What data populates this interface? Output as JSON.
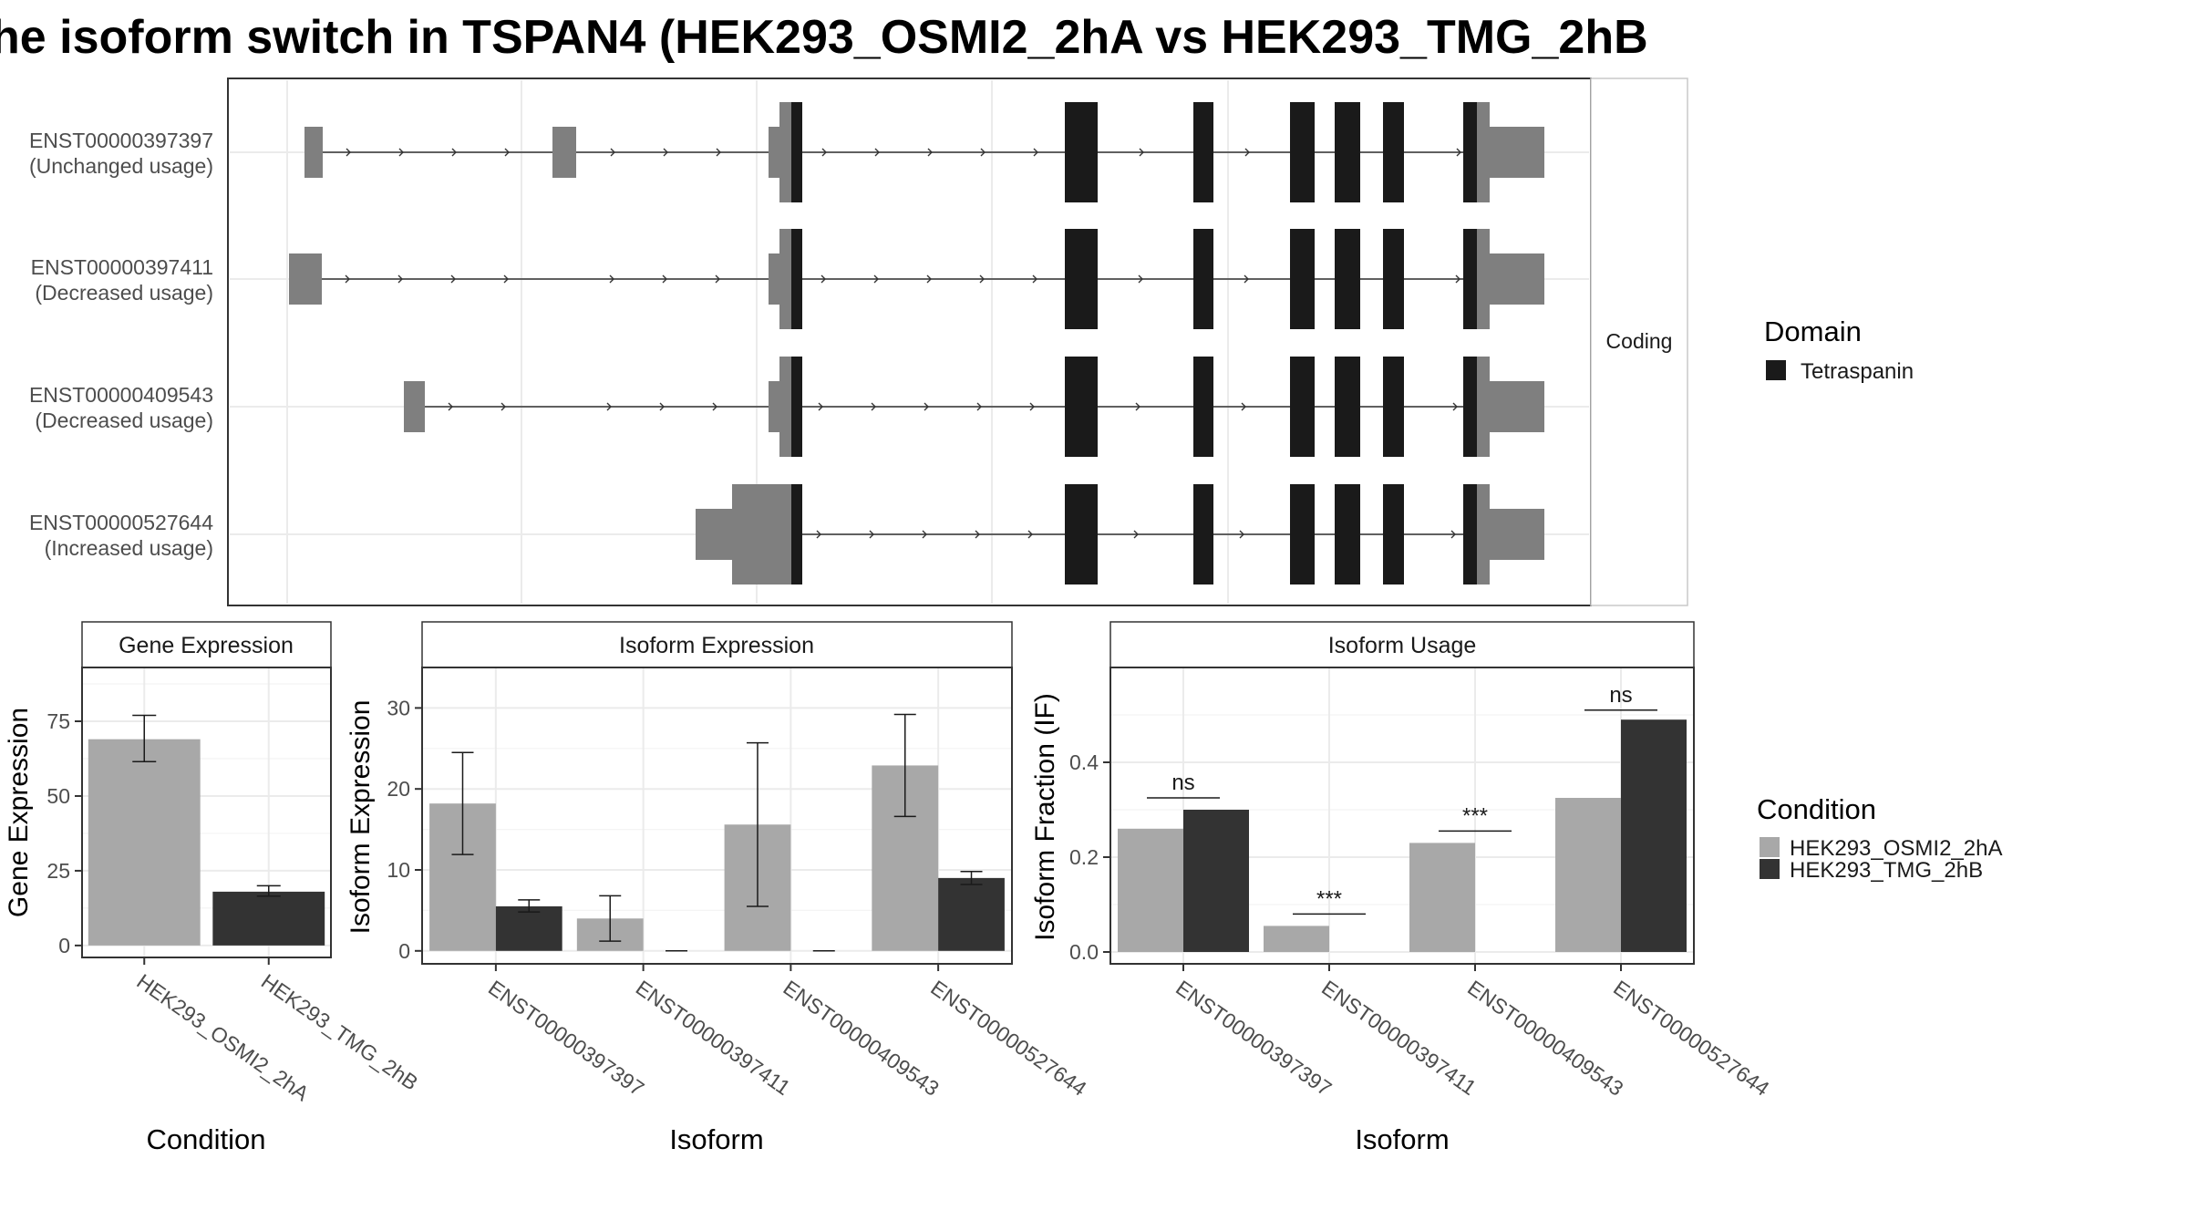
{
  "title": "he isoform switch in TSPAN4 (HEK293_OSMI2_2hA vs HEK293_TMG_2hB",
  "structure": {
    "facet_label": "Coding",
    "isoforms": [
      {
        "id": "ENST00000397397",
        "usage": "(Unchanged usage)"
      },
      {
        "id": "ENST00000397411",
        "usage": "(Decreased usage)"
      },
      {
        "id": "ENST00000409543",
        "usage": "(Decreased usage)"
      },
      {
        "id": "ENST00000527644",
        "usage": "(Increased usage)"
      }
    ]
  },
  "legends": {
    "domain": {
      "title": "Domain",
      "items": [
        {
          "label": "Tetraspanin",
          "color": "#1a1a1a"
        }
      ]
    },
    "condition": {
      "title": "Condition",
      "items": [
        {
          "label": "HEK293_OSMI2_2hA",
          "color": "#a8a8a8"
        },
        {
          "label": "HEK293_TMG_2hB",
          "color": "#333333"
        }
      ]
    }
  },
  "colors": {
    "grey": "#a8a8a8",
    "dark": "#333333",
    "utr": "#7f7f7f",
    "domain": "#1a1a1a"
  },
  "chart_data": [
    {
      "type": "bar",
      "title": "Gene Expression",
      "xlabel": "Condition",
      "ylabel": "Gene Expression",
      "categories": [
        "HEK293_OSMI2_2hA",
        "HEK293_TMG_2hB"
      ],
      "values": [
        69,
        18
      ],
      "error_low": [
        61.5,
        16.5
      ],
      "error_high": [
        77,
        20
      ],
      "ylim": [
        -4,
        93
      ],
      "yticks": [
        0,
        25,
        50,
        75
      ]
    },
    {
      "type": "bar",
      "title": "Isoform Expression",
      "xlabel": "Isoform",
      "ylabel": "Isoform Expression",
      "categories": [
        "ENST00000397397",
        "ENST00000397411",
        "ENST00000409543",
        "ENST00000527644"
      ],
      "series": [
        {
          "name": "HEK293_OSMI2_2hA",
          "values": [
            18.2,
            4.0,
            15.6,
            22.9
          ],
          "error_low": [
            11.9,
            1.2,
            5.5,
            16.6
          ],
          "error_high": [
            24.5,
            6.8,
            25.7,
            29.2
          ]
        },
        {
          "name": "HEK293_TMG_2hB",
          "values": [
            5.5,
            0,
            0,
            9.0
          ],
          "error_low": [
            4.8,
            0,
            0,
            8.2
          ],
          "error_high": [
            6.3,
            0,
            0,
            9.8
          ]
        }
      ],
      "ylim": [
        -1.6,
        35
      ],
      "yticks": [
        0,
        10,
        20,
        30
      ]
    },
    {
      "type": "bar",
      "title": "Isoform Usage",
      "xlabel": "Isoform",
      "ylabel": "Isoform Fraction (IF)",
      "categories": [
        "ENST00000397397",
        "ENST00000397411",
        "ENST00000409543",
        "ENST00000527644"
      ],
      "series": [
        {
          "name": "HEK293_OSMI2_2hA",
          "values": [
            0.26,
            0.055,
            0.23,
            0.325
          ]
        },
        {
          "name": "HEK293_TMG_2hB",
          "values": [
            0.3,
            0,
            0,
            0.49
          ]
        }
      ],
      "significance": [
        {
          "label": "ns",
          "y": 0.325
        },
        {
          "label": "***",
          "y": 0.08
        },
        {
          "label": "***",
          "y": 0.255
        },
        {
          "label": "ns",
          "y": 0.51
        }
      ],
      "ylim": [
        -0.025,
        0.6
      ],
      "yticks": [
        0.0,
        0.2,
        0.4
      ],
      "ytick_labels": [
        "0.0",
        "0.2",
        "0.4"
      ]
    }
  ]
}
